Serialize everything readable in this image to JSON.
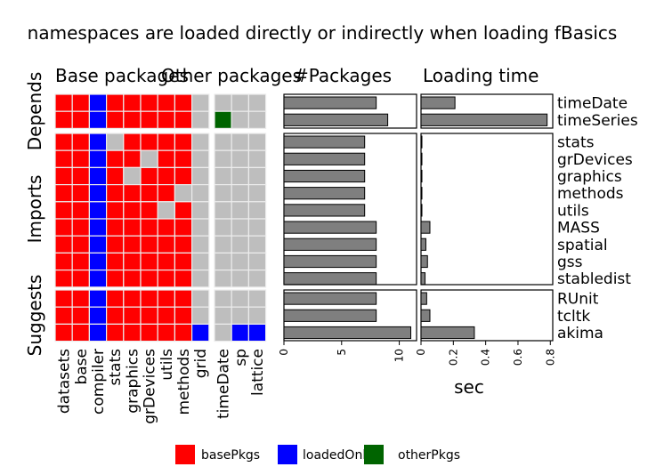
{
  "chart_data": {
    "type": "heatmap",
    "title": "namespaces are loaded directly or indirectly when loading fBasics",
    "panel_titles": {
      "base": "Base packages",
      "other": "Other packages",
      "count": "#Packages",
      "time": "Loading time"
    },
    "groups": [
      {
        "label": "Depends",
        "packages": [
          "timeDate",
          "timeSeries"
        ]
      },
      {
        "label": "Imports",
        "packages": [
          "stats",
          "grDevices",
          "graphics",
          "methods",
          "utils",
          "MASS",
          "spatial",
          "gss",
          "stabledist"
        ]
      },
      {
        "label": "Suggests",
        "packages": [
          "RUnit",
          "tcltk",
          "akima"
        ]
      }
    ],
    "base_columns": [
      "datasets",
      "base",
      "compiler",
      "stats",
      "graphics",
      "grDevices",
      "utils",
      "methods",
      "grid"
    ],
    "other_columns": [
      "timeDate",
      "sp",
      "lattice"
    ],
    "cells_legend": "B = basePkgs, L = loadedOnly, O = otherPkgs, N = not loaded",
    "cells_base": {
      "timeDate": [
        "B",
        "B",
        "L",
        "B",
        "B",
        "B",
        "B",
        "B",
        "N"
      ],
      "timeSeries": [
        "B",
        "B",
        "L",
        "B",
        "B",
        "B",
        "B",
        "B",
        "N"
      ],
      "stats": [
        "B",
        "B",
        "L",
        "N",
        "B",
        "B",
        "B",
        "B",
        "N"
      ],
      "grDevices": [
        "B",
        "B",
        "L",
        "B",
        "B",
        "N",
        "B",
        "B",
        "N"
      ],
      "graphics": [
        "B",
        "B",
        "L",
        "B",
        "N",
        "B",
        "B",
        "B",
        "N"
      ],
      "methods": [
        "B",
        "B",
        "L",
        "B",
        "B",
        "B",
        "B",
        "N",
        "N"
      ],
      "utils": [
        "B",
        "B",
        "L",
        "B",
        "B",
        "B",
        "N",
        "B",
        "N"
      ],
      "MASS": [
        "B",
        "B",
        "L",
        "B",
        "B",
        "B",
        "B",
        "B",
        "N"
      ],
      "spatial": [
        "B",
        "B",
        "L",
        "B",
        "B",
        "B",
        "B",
        "B",
        "N"
      ],
      "gss": [
        "B",
        "B",
        "L",
        "B",
        "B",
        "B",
        "B",
        "B",
        "N"
      ],
      "stabledist": [
        "B",
        "B",
        "L",
        "B",
        "B",
        "B",
        "B",
        "B",
        "N"
      ],
      "RUnit": [
        "B",
        "B",
        "L",
        "B",
        "B",
        "B",
        "B",
        "B",
        "N"
      ],
      "tcltk": [
        "B",
        "B",
        "L",
        "B",
        "B",
        "B",
        "B",
        "B",
        "N"
      ],
      "akima": [
        "B",
        "B",
        "L",
        "B",
        "B",
        "B",
        "B",
        "B",
        "L"
      ]
    },
    "cells_other": {
      "timeDate": [
        "N",
        "N",
        "N"
      ],
      "timeSeries": [
        "O",
        "N",
        "N"
      ],
      "stats": [
        "N",
        "N",
        "N"
      ],
      "grDevices": [
        "N",
        "N",
        "N"
      ],
      "graphics": [
        "N",
        "N",
        "N"
      ],
      "methods": [
        "N",
        "N",
        "N"
      ],
      "utils": [
        "N",
        "N",
        "N"
      ],
      "MASS": [
        "N",
        "N",
        "N"
      ],
      "spatial": [
        "N",
        "N",
        "N"
      ],
      "gss": [
        "N",
        "N",
        "N"
      ],
      "stabledist": [
        "N",
        "N",
        "N"
      ],
      "RUnit": [
        "N",
        "N",
        "N"
      ],
      "tcltk": [
        "N",
        "N",
        "N"
      ],
      "akima": [
        "N",
        "L",
        "L"
      ]
    },
    "n_packages": {
      "timeDate": 8,
      "timeSeries": 9,
      "stats": 7,
      "grDevices": 7,
      "graphics": 7,
      "methods": 7,
      "utils": 7,
      "MASS": 8,
      "spatial": 8,
      "gss": 8,
      "stabledist": 8,
      "RUnit": 8,
      "tcltk": 8,
      "akima": 11
    },
    "count_axis": {
      "ticks": [
        0,
        5,
        10
      ],
      "xlim": [
        0,
        11.5
      ]
    },
    "load_time_sec": {
      "timeDate": 0.21,
      "timeSeries": 0.78,
      "stats": 0.002,
      "grDevices": 0.002,
      "graphics": 0.002,
      "methods": 0.002,
      "utils": 0.002,
      "MASS": 0.055,
      "spatial": 0.03,
      "gss": 0.04,
      "stabledist": 0.025,
      "RUnit": 0.035,
      "tcltk": 0.055,
      "akima": 0.33
    },
    "time_axis": {
      "ticks": [
        0,
        0.2,
        0.4,
        0.6,
        0.8
      ],
      "tick_labels": [
        "0",
        "0.2",
        "0.4",
        "0.6",
        "0.8"
      ],
      "xlim": [
        0,
        0.815
      ],
      "xlabel": "sec"
    },
    "legend": [
      {
        "key": "B",
        "label": "basePkgs",
        "color": "#FF0000"
      },
      {
        "key": "L",
        "label": "loadedOnly",
        "color": "#0000FF"
      },
      {
        "key": "O",
        "label": "otherPkgs",
        "color": "#006400"
      }
    ],
    "colors": {
      "N": "#BEBEBE",
      "bar": "#7F7F7F"
    },
    "legend_position": "bottom"
  }
}
